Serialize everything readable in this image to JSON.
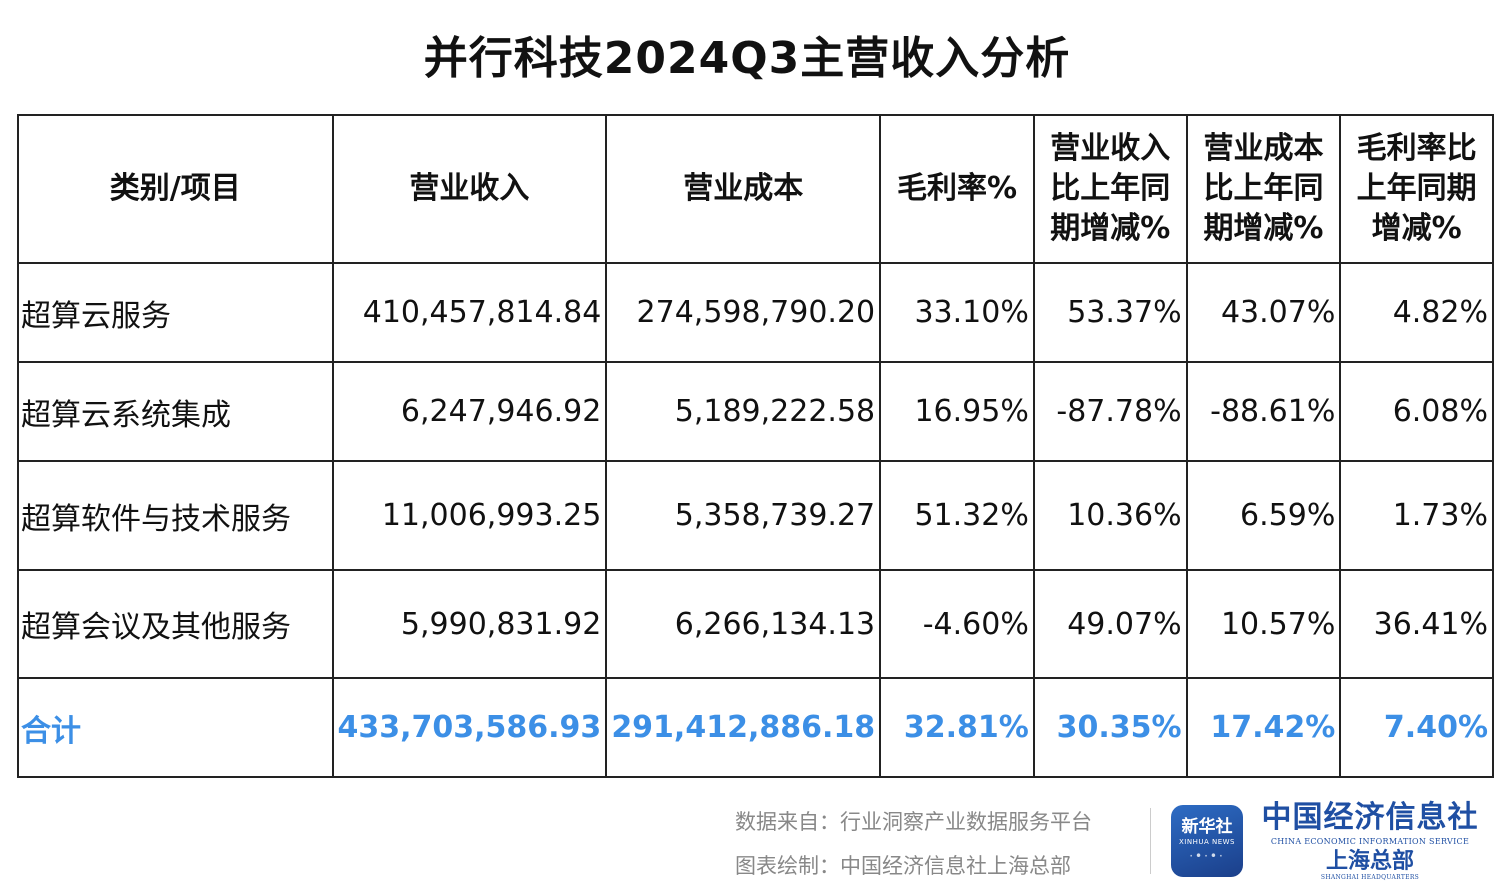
{
  "title": "并行科技2024Q3主营收入分析",
  "table": {
    "headers": [
      "类别/项目",
      "营业收入",
      "营业成本",
      "毛利率%",
      "营业收入比上年同期增减%",
      "营业成本比上年同期增减%",
      "毛利率比上年同期增减%"
    ],
    "rows": [
      [
        "超算云服务",
        "410,457,814.84",
        "274,598,790.20",
        "33.10%",
        "53.37%",
        "43.07%",
        "4.82%"
      ],
      [
        "超算云系统集成",
        "6,247,946.92",
        "5,189,222.58",
        "16.95%",
        "-87.78%",
        "-88.61%",
        "6.08%"
      ],
      [
        "超算软件与技术服务",
        "11,006,993.25",
        "5,358,739.27",
        "51.32%",
        "10.36%",
        "6.59%",
        "1.73%"
      ],
      [
        "超算会议及其他服务",
        "5,990,831.92",
        "6,266,134.13",
        "-4.60%",
        "49.07%",
        "10.57%",
        "36.41%"
      ]
    ],
    "total": [
      "合计",
      "433,703,586.93",
      "291,412,886.18",
      "32.81%",
      "30.35%",
      "17.42%",
      "7.40%"
    ],
    "total_color": "#3c8fe6"
  },
  "footer": {
    "source": "数据来自：行业洞察产业数据服务平台",
    "credit": "图表绘制：中国经济信息社上海总部"
  },
  "logo": {
    "badge_cn": "新华社",
    "badge_en": "XINHUA NEWS",
    "brand_name": "中国经济信息社",
    "brand_en": "CHINA ECONOMIC INFORMATION SERVICE",
    "brand_sub": "上海总部",
    "brand_sub_en": "SHANGHAI HEADQUARTERS"
  }
}
